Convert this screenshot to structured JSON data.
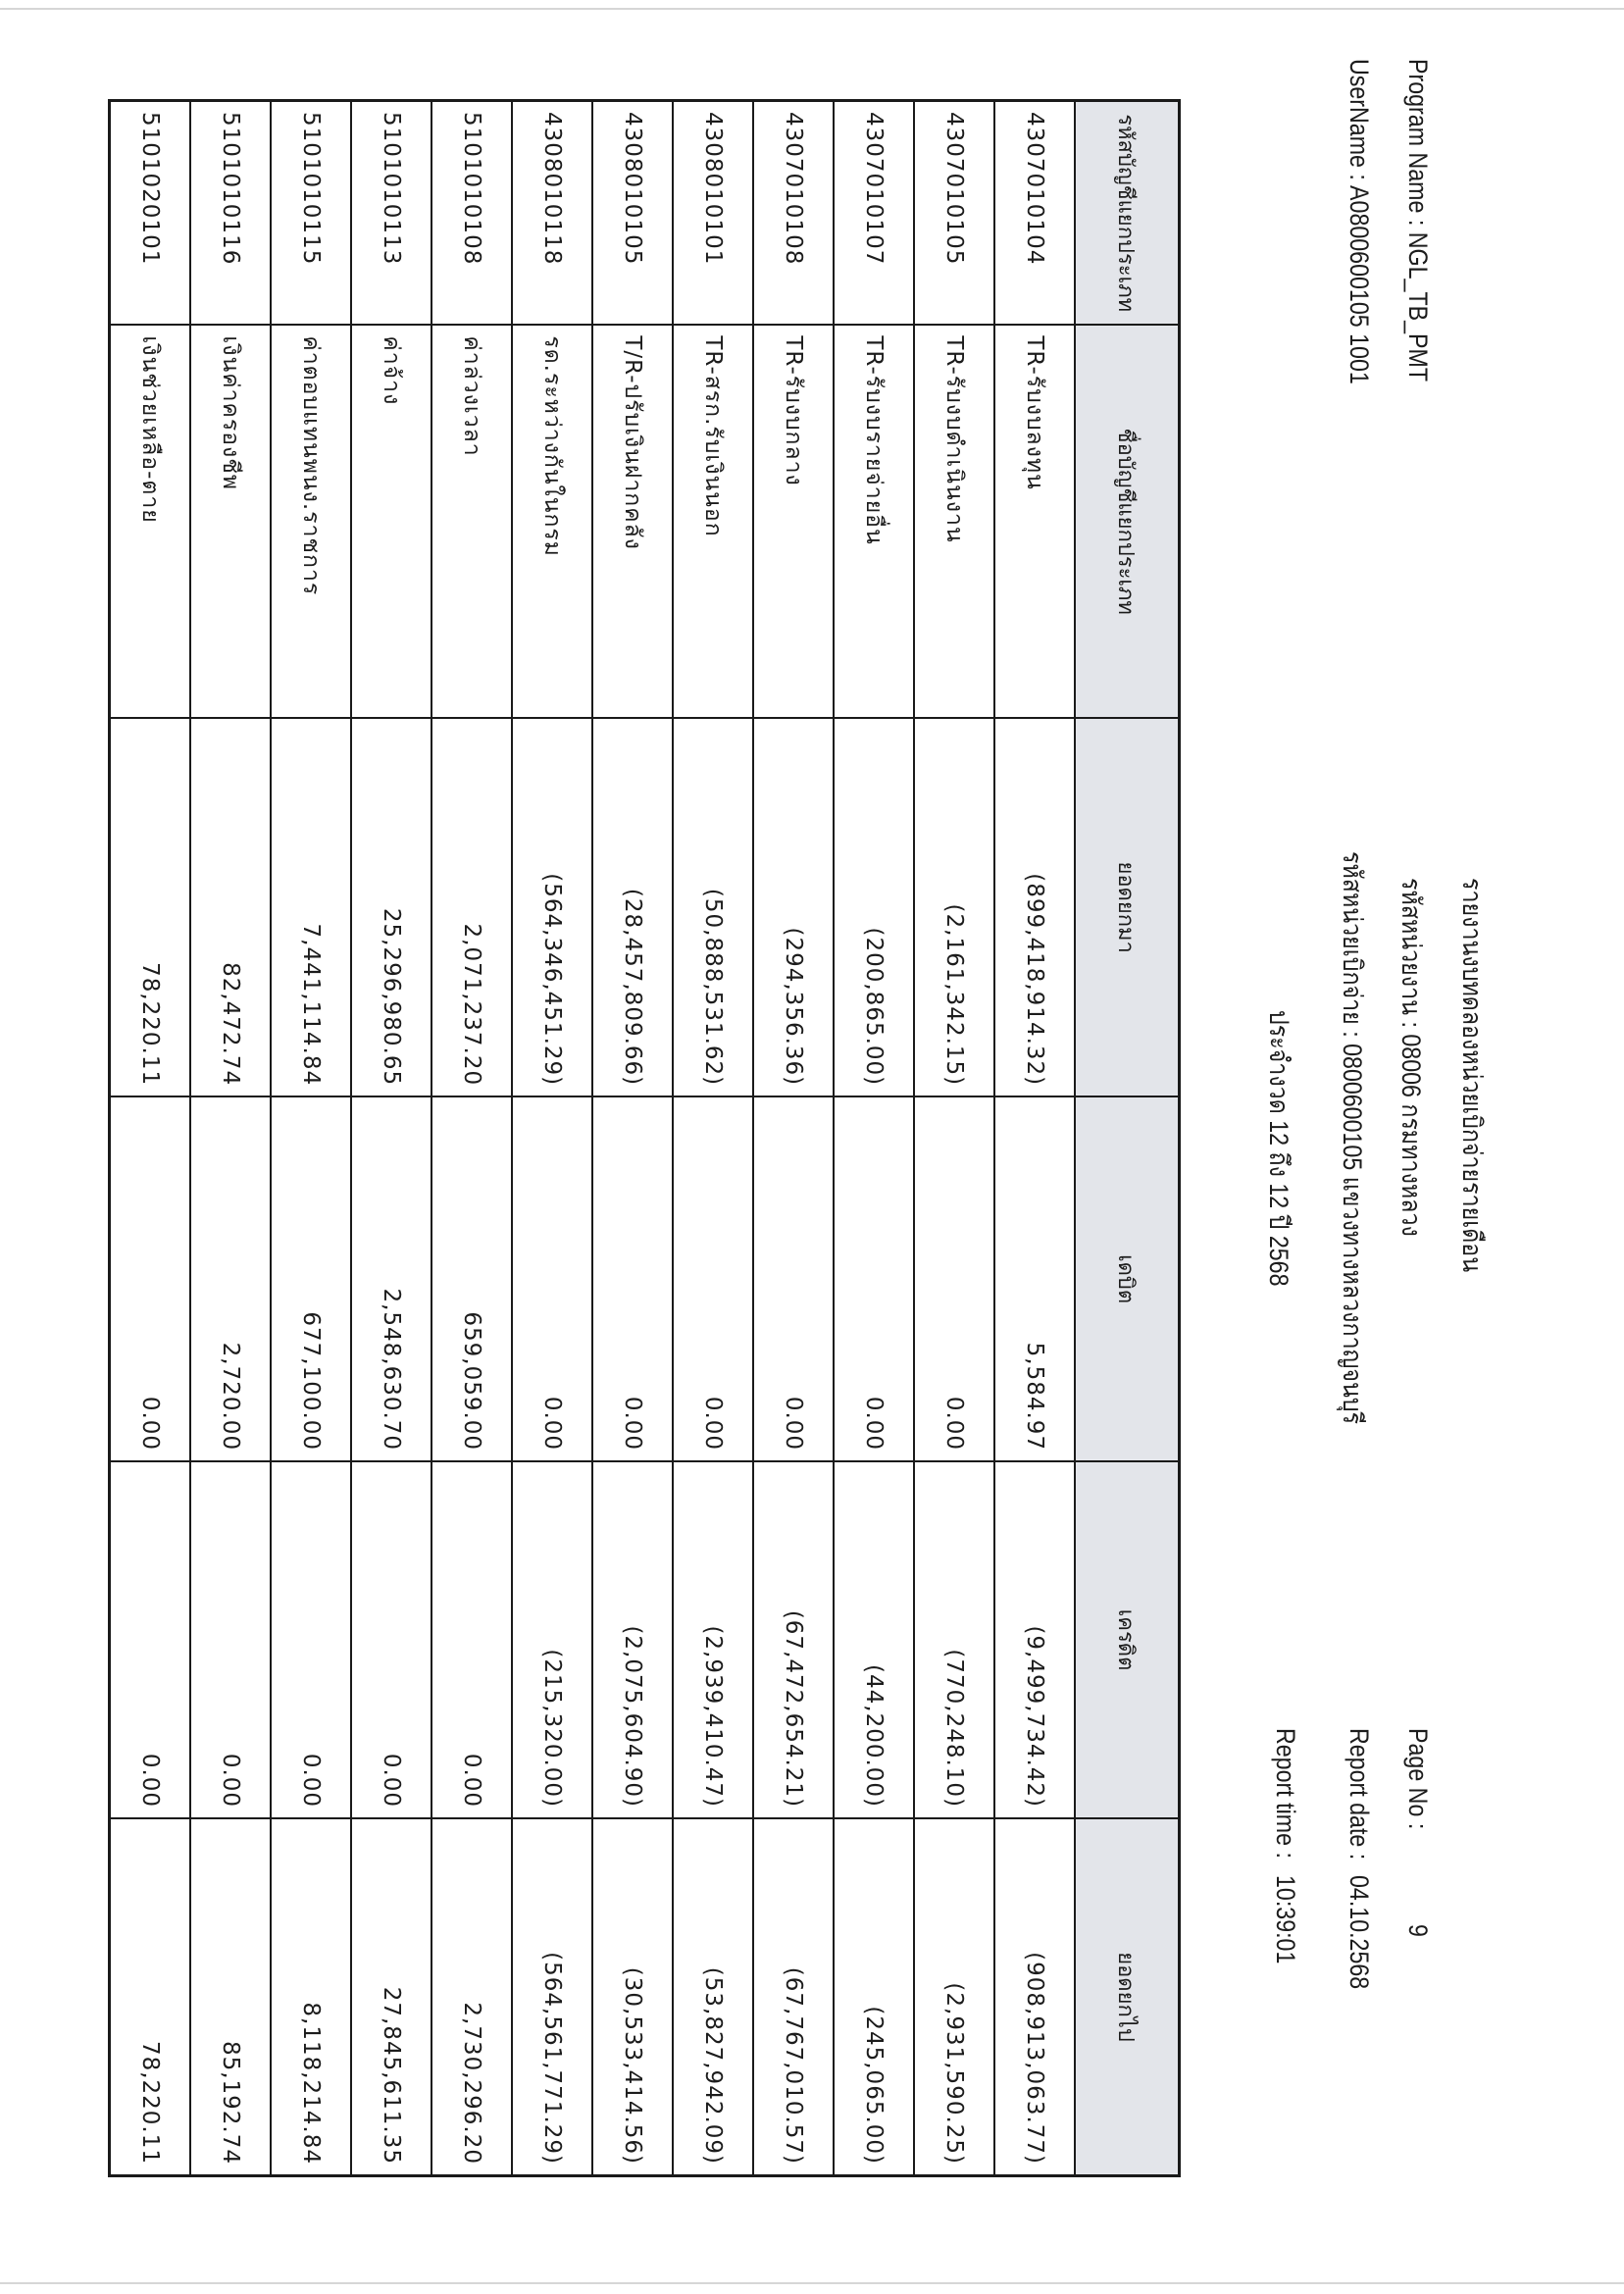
{
  "report": {
    "title": "รายงานงบทดลองหน่วยเบิกจ่ายรายเดือน",
    "program_name": "Program Name : NGL_TB_PMT",
    "username": "UserName : A0800600105 1001",
    "agency": "รหัสหน่วยงาน : 08006 กรมทางหลวง",
    "disbursing_unit": "รหัสหน่วยเบิกจ่าย : 0800600105 แขวงทางหลวงกาญจนบุรี",
    "period": "ประจำงวด 12 ถึง 12 ปี 2568",
    "page_no_label": "Page No :",
    "page_no": "9",
    "report_date_label": "Report date :",
    "report_date": "04.10.2568",
    "report_time_label": "Report time :",
    "report_time": "10:39:01"
  },
  "table": {
    "headers": [
      "รหัสบัญชีแยกประเภท",
      "ชื่อบัญชีแยกประเภท",
      "ยอดยกมา",
      "เดบิต",
      "เครดิต",
      "ยอดยกไป"
    ],
    "rows": [
      [
        "4307010104",
        "TR-รับงบลงทุน",
        "(899,418,914.32)",
        "5,584.97",
        "(9,499,734.42)",
        "(908,913,063.77)"
      ],
      [
        "4307010105",
        "TR-รับงบดำเนินงาน",
        "(2,161,342.15)",
        "0.00",
        "(770,248.10)",
        "(2,931,590.25)"
      ],
      [
        "4307010107",
        "TR-รับงบรายจ่ายอื่น",
        "(200,865.00)",
        "0.00",
        "(44,200.00)",
        "(245,065.00)"
      ],
      [
        "4307010108",
        "TR-รับงบกลาง",
        "(294,356.36)",
        "0.00",
        "(67,472,654.21)",
        "(67,767,010.57)"
      ],
      [
        "4308010101",
        "TR-สรก.รับเงินนอก",
        "(50,888,531.62)",
        "0.00",
        "(2,939,410.47)",
        "(53,827,942.09)"
      ],
      [
        "4308010105",
        "T/R-ปรับเงินฝากคลัง",
        "(28,457,809.66)",
        "0.00",
        "(2,075,604.90)",
        "(30,533,414.56)"
      ],
      [
        "4308010118",
        "รด.ระหว่างกันในกรม",
        "(564,346,451.29)",
        "0.00",
        "(215,320.00)",
        "(564,561,771.29)"
      ],
      [
        "5101010108",
        "ค่าล่วงเวลา",
        "2,071,237.20",
        "659,059.00",
        "0.00",
        "2,730,296.20"
      ],
      [
        "5101010113",
        "ค่าจ้าง",
        "25,296,980.65",
        "2,548,630.70",
        "0.00",
        "27,845,611.35"
      ],
      [
        "5101010115",
        "ค่าตอบแทนพนง.ราชการ",
        "7,441,114.84",
        "677,100.00",
        "0.00",
        "8,118,214.84"
      ],
      [
        "5101010116",
        "เงินค่าครองชีพ",
        "82,472.74",
        "2,720.00",
        "0.00",
        "85,192.74"
      ],
      [
        "5101020101",
        "เงินช่วยเหลือ-ตาย",
        "78,220.11",
        "0.00",
        "0.00",
        "78,220.11"
      ]
    ]
  },
  "colors": {
    "header_bg": "#e3e5ea",
    "border": "#1a1a1a",
    "text": "#1c1c1c"
  }
}
